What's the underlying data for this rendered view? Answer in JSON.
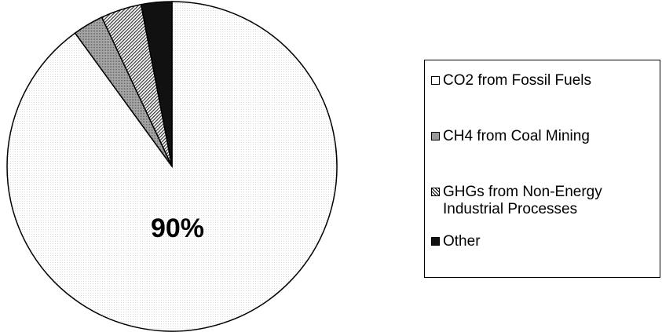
{
  "chart_data": {
    "type": "pie",
    "title": "",
    "slices": [
      {
        "label": "CO2 from Fossil Fuels",
        "value": 90,
        "color": "#ffffff",
        "pattern": "dotted"
      },
      {
        "label": "CH4 from Coal Mining",
        "value": 3,
        "color": "#9a9a9a",
        "pattern": "fine-dots"
      },
      {
        "label": "GHGs from Non-Energy Industrial Processes",
        "value": 4,
        "color": "#ffffff",
        "pattern": "diagonal-hatch"
      },
      {
        "label": "Other",
        "value": 3,
        "color": "#111111",
        "pattern": "solid"
      }
    ],
    "data_labels": [
      "90%"
    ],
    "legend_position": "right"
  },
  "legend": {
    "items": [
      {
        "label": "CO2 from Fossil Fuels"
      },
      {
        "label": "CH4 from Coal Mining"
      },
      {
        "label": "GHGs from Non-Energy\nIndustrial Processes"
      },
      {
        "label": "Other"
      }
    ]
  }
}
